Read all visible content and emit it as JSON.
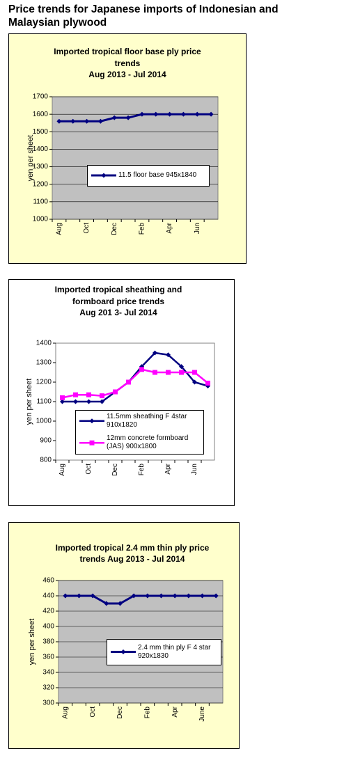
{
  "header": {
    "title": [
      "Price trends for Japanese imports of Indonesian and",
      "Malaysian plywood"
    ]
  },
  "chart_data": [
    {
      "type": "line",
      "title": [
        "Imported tropical floor base ply price",
        "trends",
        "Aug 2013  - Jul 2014"
      ],
      "ylabel": "yen per sheet",
      "categories": [
        "Aug",
        null,
        "Oct",
        null,
        "Dec",
        null,
        "Feb",
        null,
        "Apr",
        null,
        "Jun",
        null
      ],
      "series": [
        {
          "name": "11.5 floor base 945x1840",
          "color": "#000080",
          "marker": "diamond",
          "values": [
            1560,
            1560,
            1560,
            1560,
            1580,
            1580,
            1600,
            1600,
            1600,
            1600,
            1600,
            1600
          ]
        }
      ],
      "ylim": [
        1000,
        1700
      ],
      "yticks": [
        1000,
        1100,
        1200,
        1300,
        1400,
        1500,
        1600,
        1700
      ],
      "grid": true,
      "background": "#ffffcc",
      "plot_background": "#c0c0c0"
    },
    {
      "type": "line",
      "title": [
        "Imported tropical sheathing and",
        "formboard price trends",
        "Aug 201 3- Jul 2014"
      ],
      "ylabel": "yen per sheet",
      "categories": [
        "Aug",
        null,
        "Oct",
        null,
        "Dec",
        null,
        "Feb",
        null,
        "Apr",
        null,
        "Jun",
        null
      ],
      "series": [
        {
          "name": "11.5mm sheathing F 4star 910x1820",
          "color": "#000080",
          "marker": "diamond",
          "values": [
            1100,
            1100,
            1100,
            1100,
            1150,
            1200,
            1280,
            1350,
            1340,
            1280,
            1200,
            1180
          ]
        },
        {
          "name": "12mm concrete formboard (JAS) 900x1800",
          "color": "#ff00ff",
          "marker": "square",
          "values": [
            1120,
            1135,
            1135,
            1130,
            1150,
            1200,
            1265,
            1250,
            1250,
            1250,
            1250,
            1195
          ]
        }
      ],
      "ylim": [
        800,
        1400
      ],
      "yticks": [
        800,
        900,
        1000,
        1100,
        1200,
        1300,
        1400
      ],
      "grid": false,
      "background": "#ffffff",
      "plot_background": "#ffffff"
    },
    {
      "type": "line",
      "title": [
        "Imported tropical 2.4 mm thin ply price",
        "trends  Aug  2013 - Jul 2014"
      ],
      "ylabel": "yen per sheet",
      "categories": [
        "Aug",
        null,
        "Oct",
        null,
        "Dec",
        null,
        "Feb",
        null,
        "Apr",
        null,
        "June",
        null
      ],
      "series": [
        {
          "name": "2.4 mm thin ply F 4 star 920x1830",
          "color": "#000080",
          "marker": "diamond",
          "values": [
            440,
            440,
            440,
            430,
            430,
            440,
            440,
            440,
            440,
            440,
            440,
            440
          ]
        }
      ],
      "ylim": [
        300,
        460
      ],
      "yticks": [
        300,
        320,
        340,
        360,
        380,
        400,
        420,
        440,
        460
      ],
      "grid": true,
      "background": "#ffffcc",
      "plot_background": "#c0c0c0"
    }
  ]
}
